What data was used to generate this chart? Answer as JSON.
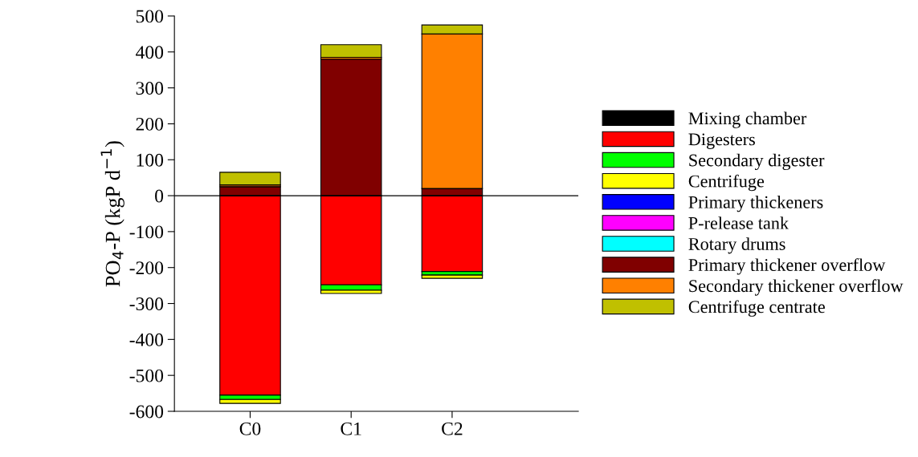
{
  "chart_data": {
    "type": "bar",
    "stacked": true,
    "ylabel": "PO$_{4}$-P (kgP d$^{−1}$)",
    "categories": [
      "C0",
      "C1",
      "C2"
    ],
    "series": [
      {
        "name": "Mixing chamber",
        "color": "#000000",
        "values": [
          0,
          0,
          0
        ]
      },
      {
        "name": "Digesters",
        "color": "#ff0000",
        "values": [
          -555,
          -248,
          -211
        ]
      },
      {
        "name": "Secondary digester",
        "color": "#00ff00",
        "values": [
          -12,
          -15,
          -10
        ]
      },
      {
        "name": "Centrifuge",
        "color": "#ffff00",
        "values": [
          -11,
          -9,
          -9
        ]
      },
      {
        "name": "Primary thickeners",
        "color": "#0000ff",
        "values": [
          0,
          0,
          0
        ]
      },
      {
        "name": "P-release tank",
        "color": "#ff00ff",
        "values": [
          0,
          0,
          0
        ]
      },
      {
        "name": "Rotary drums",
        "color": "#00ffff",
        "values": [
          0,
          0,
          0
        ]
      },
      {
        "name": "Primary thickener overflow",
        "color": "#800000",
        "values": [
          25,
          380,
          20
        ]
      },
      {
        "name": "Secondary thickener overflow",
        "color": "#ff8000",
        "values": [
          5,
          5,
          430
        ]
      },
      {
        "name": "Centrifuge centrate",
        "color": "#c0c000",
        "values": [
          35,
          35,
          25
        ]
      }
    ],
    "ylim": [
      -600,
      500
    ],
    "yticks": [
      -600,
      -500,
      -400,
      -300,
      -200,
      -100,
      0,
      100,
      200,
      300,
      400,
      500
    ],
    "ref_lines": [
      {
        "axis": "y",
        "value": 0,
        "color": "#000000"
      }
    ],
    "legend": "right",
    "grid": false
  }
}
